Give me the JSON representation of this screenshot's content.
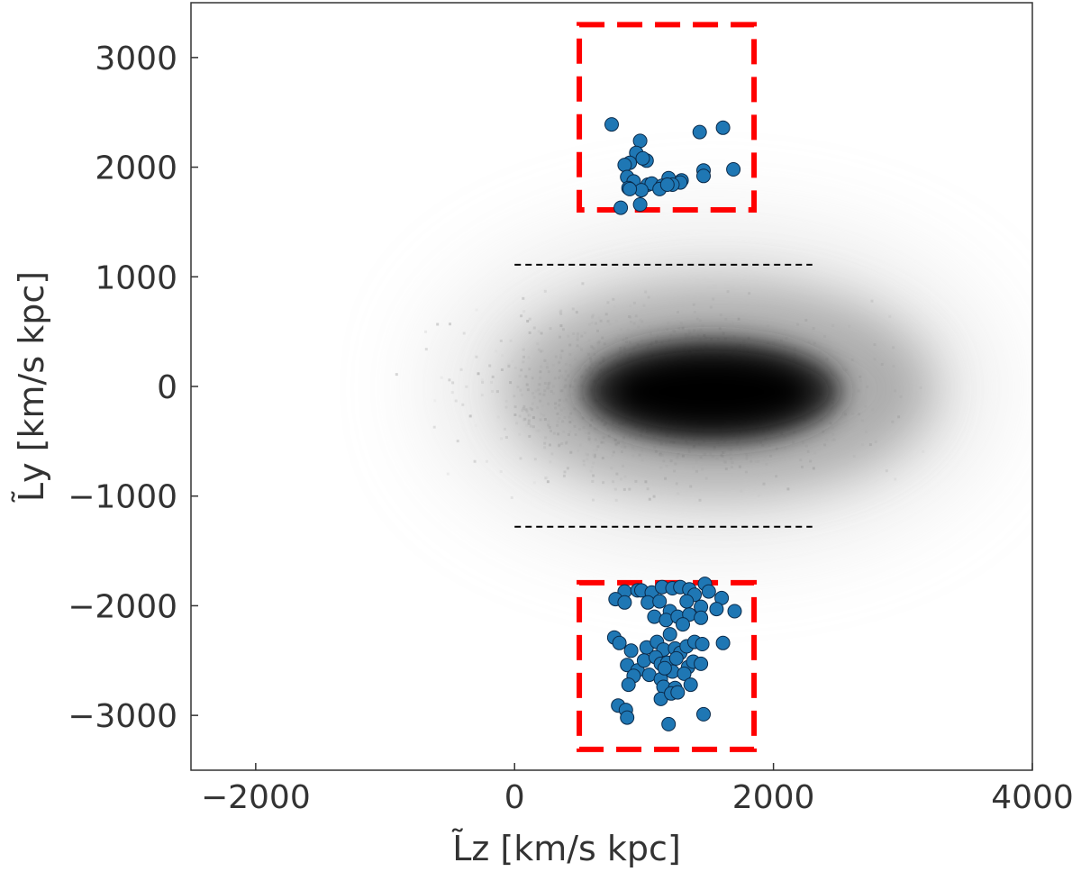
{
  "chart_data": {
    "type": "scatter",
    "title": "",
    "xlabel": "L̃z [km/s kpc]",
    "ylabel": "L̃y [km/s kpc]",
    "xlim": [
      -2500,
      4000
    ],
    "ylim": [
      -3500,
      3500
    ],
    "xticks": [
      -2000,
      0,
      2000,
      4000
    ],
    "yticks": [
      -3000,
      -2000,
      -1000,
      0,
      1000,
      2000,
      3000
    ],
    "xtick_labels": [
      "−2000",
      "0",
      "2000",
      "4000"
    ],
    "ytick_labels": [
      "−3000",
      "−2000",
      "−1000",
      "0",
      "1000",
      "2000",
      "3000"
    ],
    "grid": false,
    "colors": {
      "points": "#1f77b4",
      "point_edge": "#0a2a4a",
      "selection_box": "#ff0000",
      "reference_lines": "#000000",
      "density": "#000000"
    },
    "density_background": {
      "type": "2d-histogram",
      "colormap": "greys",
      "core_center": [
        1500,
        -50
      ],
      "extent_x": [
        -2200,
        3300
      ],
      "extent_y": [
        -2200,
        2400
      ]
    },
    "reference_lines": [
      {
        "x": [
          0,
          2300
        ],
        "y": 1110,
        "style": "dashed"
      },
      {
        "x": [
          0,
          2300
        ],
        "y": -1280,
        "style": "dashed"
      }
    ],
    "selection_boxes": [
      {
        "name": "upper",
        "x": [
          500,
          1850
        ],
        "y": [
          1610,
          3300
        ]
      },
      {
        "name": "lower",
        "x": [
          500,
          1850
        ],
        "y": [
          -3310,
          -1790
        ]
      }
    ],
    "series": [
      {
        "x": [
          750,
          1610,
          1430,
          970,
          940,
          1460,
          1690,
          890,
          1020,
          990,
          850,
          1460,
          1030,
          870,
          920,
          1190,
          1290,
          1280,
          1060,
          1220,
          880,
          980,
          1140,
          890,
          1120,
          1180,
          820,
          970
        ],
        "y": [
          2390,
          2360,
          2320,
          2240,
          2130,
          1970,
          1980,
          2040,
          2060,
          2080,
          2020,
          1920,
          1840,
          1910,
          1870,
          1900,
          1880,
          1860,
          1850,
          1840,
          1810,
          1790,
          1830,
          1800,
          1800,
          1840,
          1630,
          1660
        ]
      },
      {
        "x": [
          850,
          950,
          980,
          1060,
          1140,
          1220,
          1280,
          1350,
          1470,
          1390,
          1500,
          1600,
          780,
          850,
          1030,
          1120,
          1200,
          1330,
          1440,
          1560,
          1700,
          1080,
          1170,
          1260,
          1350,
          1440,
          770,
          810,
          900,
          1020,
          1100,
          1150,
          1240,
          1280,
          1330,
          1390,
          1450,
          1610,
          870,
          950,
          1000,
          1090,
          1130,
          1180,
          1250,
          1340,
          1380,
          1440,
          920,
          1040,
          1130,
          1220,
          1310,
          880,
          1150,
          1240,
          1360,
          1130,
          1210,
          1260,
          800,
          860,
          870,
          1460,
          1190,
          1160,
          1200,
          1300
        ],
        "y": [
          -1870,
          -1860,
          -1860,
          -1880,
          -1830,
          -1840,
          -1830,
          -1850,
          -1800,
          -1900,
          -1870,
          -1930,
          -1940,
          -1970,
          -1970,
          -1960,
          -2050,
          -1960,
          -2010,
          -2030,
          -2050,
          -2100,
          -2130,
          -2100,
          -2080,
          -2110,
          -2290,
          -2340,
          -2410,
          -2380,
          -2330,
          -2400,
          -2390,
          -2430,
          -2370,
          -2330,
          -2350,
          -2340,
          -2540,
          -2590,
          -2500,
          -2470,
          -2530,
          -2520,
          -2480,
          -2560,
          -2510,
          -2530,
          -2640,
          -2630,
          -2670,
          -2600,
          -2620,
          -2720,
          -2740,
          -2750,
          -2720,
          -2850,
          -2800,
          -2790,
          -2910,
          -2950,
          -3020,
          -2990,
          -3080,
          -2570,
          -2260,
          -2170
        ]
      }
    ]
  }
}
